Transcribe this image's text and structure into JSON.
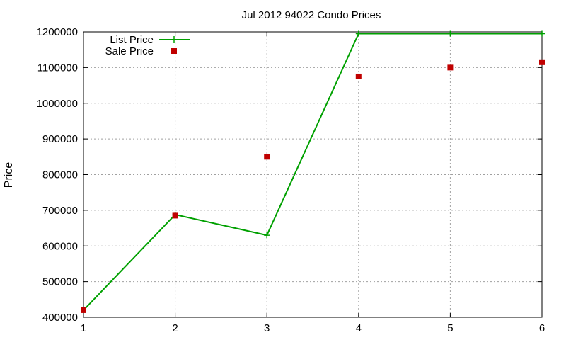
{
  "chart_data": {
    "type": "line",
    "title": "Jul 2012 94022 Condo Prices",
    "xlabel": "",
    "ylabel": "Price",
    "xlim": [
      1,
      6
    ],
    "ylim": [
      400000,
      1200000
    ],
    "x_ticks": [
      1,
      2,
      3,
      4,
      5,
      6
    ],
    "y_ticks": [
      400000,
      500000,
      600000,
      700000,
      800000,
      900000,
      1000000,
      1100000,
      1200000
    ],
    "grid": true,
    "legend_position": "top-left",
    "series": [
      {
        "name": "List Price",
        "type": "line",
        "color": "#00a000",
        "marker": "plus",
        "x": [
          1,
          2,
          3,
          4,
          5,
          6
        ],
        "y": [
          420000,
          688000,
          630000,
          1195000,
          1195000,
          1195000
        ]
      },
      {
        "name": "Sale Price",
        "type": "scatter",
        "color": "#c00000",
        "marker": "square",
        "x": [
          1,
          2,
          3,
          4,
          5,
          6
        ],
        "y": [
          420000,
          685000,
          850000,
          1075000,
          1100000,
          1115000
        ]
      }
    ]
  }
}
